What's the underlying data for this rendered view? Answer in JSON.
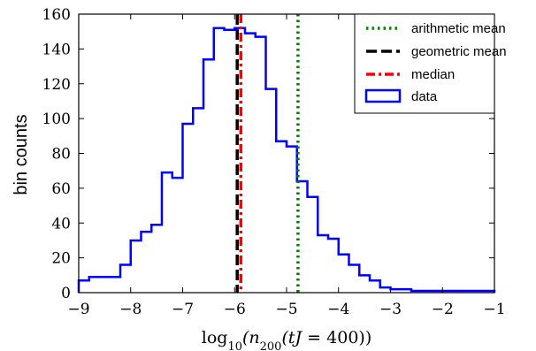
{
  "chart_data": {
    "type": "histogram",
    "title": "",
    "xlabel": "log₁₀(n₂₀₀(tJ = 400))",
    "ylabel": "bin counts",
    "xlim": [
      -9,
      -1
    ],
    "ylim": [
      0,
      160
    ],
    "xticks": [
      -9,
      -8,
      -7,
      -6,
      -5,
      -4,
      -3,
      -2,
      -1
    ],
    "xtick_labels": [
      "−9",
      "−8",
      "−7",
      "−6",
      "−5",
      "−4",
      "−3",
      "−2",
      "−1"
    ],
    "yticks": [
      0,
      20,
      40,
      60,
      80,
      100,
      120,
      140,
      160
    ],
    "ytick_labels": [
      "0",
      "20",
      "40",
      "60",
      "80",
      "100",
      "120",
      "140",
      "160"
    ],
    "grid": false,
    "legend_position": "top-right",
    "bins": {
      "edges": [
        -9.0,
        -8.8,
        -8.6,
        -8.4,
        -8.2,
        -8.0,
        -7.8,
        -7.6,
        -7.4,
        -7.2,
        -7.0,
        -6.8,
        -6.6,
        -6.4,
        -6.2,
        -6.0,
        -5.8,
        -5.6,
        -5.4,
        -5.2,
        -5.0,
        -4.8,
        -4.6,
        -4.4,
        -4.2,
        -4.0,
        -3.8,
        -3.6,
        -3.4,
        -3.2,
        -3.0,
        -2.8,
        -2.6,
        -2.4,
        -2.2,
        -2.0,
        -1.8,
        -1.6,
        -1.4,
        -1.2,
        -1.0
      ],
      "counts": [
        7,
        9,
        9,
        9,
        16,
        30,
        35,
        39,
        69,
        66,
        97,
        106,
        134,
        152,
        151,
        152,
        149,
        147,
        117,
        87,
        84,
        64,
        55,
        33,
        31,
        22,
        16,
        10,
        7,
        3,
        2,
        2,
        1,
        1,
        1,
        1,
        1,
        1,
        1,
        1
      ]
    },
    "vlines": [
      {
        "name": "arithmetic mean",
        "x": -4.78,
        "color": "#008000",
        "style": "dotted"
      },
      {
        "name": "geometric mean",
        "x": -5.95,
        "color": "#000000",
        "style": "dashed"
      },
      {
        "name": "median",
        "x": -5.88,
        "color": "#ff0000",
        "style": "dashdot"
      }
    ],
    "series": [
      {
        "name": "data",
        "color": "#0000ff",
        "style": "step"
      }
    ]
  }
}
